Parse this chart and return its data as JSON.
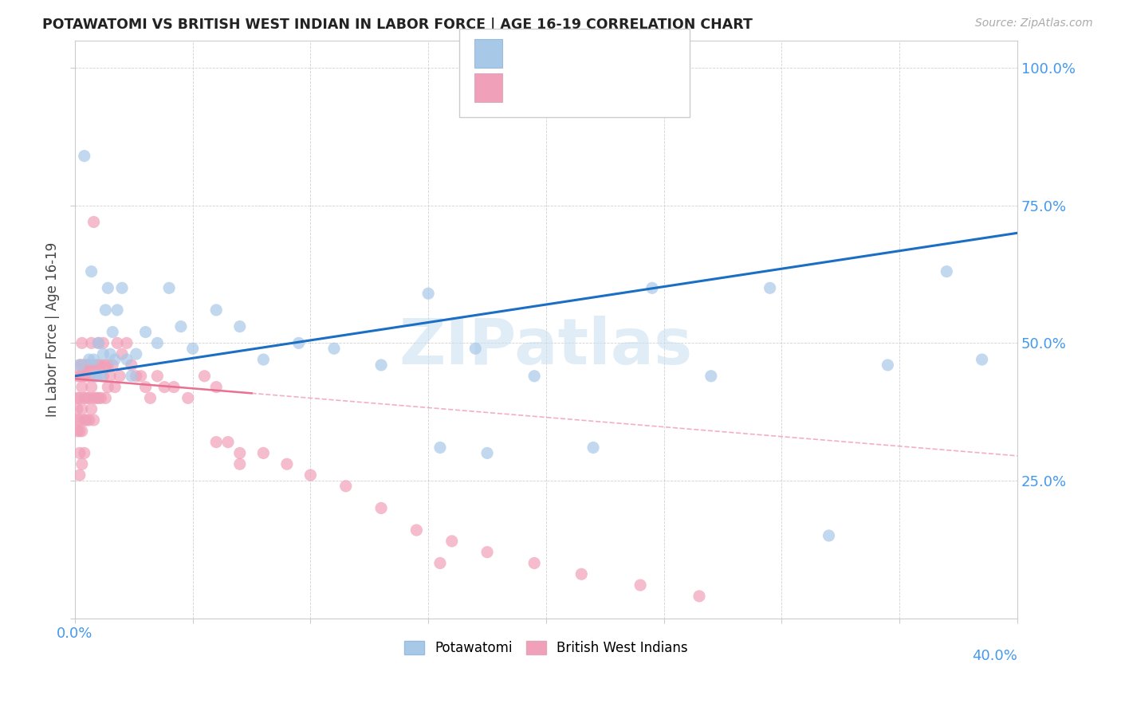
{
  "title": "POTAWATOMI VS BRITISH WEST INDIAN IN LABOR FORCE | AGE 16-19 CORRELATION CHART",
  "source": "Source: ZipAtlas.com",
  "ylabel": "In Labor Force | Age 16-19",
  "watermark": "ZIPatlas",
  "xlim": [
    0.0,
    0.4
  ],
  "ylim": [
    0.0,
    1.05
  ],
  "potawatomi_color": "#a8c8e8",
  "bwi_color": "#f0a0b8",
  "regression_pot_color": "#1a6fc4",
  "regression_bwi_color": "#e87090",
  "pot_x": [
    0.002,
    0.004,
    0.006,
    0.007,
    0.008,
    0.009,
    0.01,
    0.011,
    0.012,
    0.013,
    0.014,
    0.015,
    0.016,
    0.017,
    0.018,
    0.02,
    0.022,
    0.024,
    0.026,
    0.03,
    0.035,
    0.04,
    0.045,
    0.05,
    0.06,
    0.07,
    0.08,
    0.095,
    0.11,
    0.13,
    0.15,
    0.17,
    0.195,
    0.22,
    0.245,
    0.27,
    0.295,
    0.32,
    0.345,
    0.37,
    0.385,
    0.155,
    0.175
  ],
  "pot_y": [
    0.46,
    0.84,
    0.47,
    0.63,
    0.47,
    0.44,
    0.5,
    0.44,
    0.48,
    0.56,
    0.6,
    0.48,
    0.52,
    0.47,
    0.56,
    0.6,
    0.47,
    0.44,
    0.48,
    0.52,
    0.5,
    0.6,
    0.53,
    0.49,
    0.56,
    0.53,
    0.47,
    0.5,
    0.49,
    0.46,
    0.59,
    0.49,
    0.44,
    0.31,
    0.6,
    0.44,
    0.6,
    0.15,
    0.46,
    0.63,
    0.47,
    0.31,
    0.3
  ],
  "bwi_x": [
    0.001,
    0.001,
    0.001,
    0.001,
    0.001,
    0.002,
    0.002,
    0.002,
    0.002,
    0.002,
    0.002,
    0.002,
    0.003,
    0.003,
    0.003,
    0.003,
    0.003,
    0.003,
    0.003,
    0.004,
    0.004,
    0.004,
    0.004,
    0.004,
    0.005,
    0.005,
    0.005,
    0.005,
    0.006,
    0.006,
    0.006,
    0.006,
    0.007,
    0.007,
    0.007,
    0.007,
    0.008,
    0.008,
    0.008,
    0.008,
    0.009,
    0.009,
    0.009,
    0.01,
    0.01,
    0.01,
    0.011,
    0.011,
    0.012,
    0.012,
    0.013,
    0.013,
    0.014,
    0.014,
    0.015,
    0.016,
    0.017,
    0.018,
    0.019,
    0.02,
    0.022,
    0.024,
    0.026,
    0.028,
    0.03,
    0.032,
    0.035,
    0.038,
    0.042,
    0.048,
    0.055,
    0.06,
    0.065,
    0.07,
    0.08,
    0.09,
    0.1,
    0.115,
    0.13,
    0.145,
    0.16,
    0.175,
    0.195,
    0.215,
    0.24,
    0.265,
    0.06,
    0.07,
    0.155
  ],
  "bwi_y": [
    0.44,
    0.4,
    0.38,
    0.36,
    0.34,
    0.46,
    0.44,
    0.4,
    0.36,
    0.34,
    0.3,
    0.26,
    0.5,
    0.46,
    0.44,
    0.42,
    0.38,
    0.34,
    0.28,
    0.46,
    0.44,
    0.4,
    0.36,
    0.3,
    0.46,
    0.44,
    0.4,
    0.36,
    0.46,
    0.44,
    0.4,
    0.36,
    0.5,
    0.46,
    0.42,
    0.38,
    0.72,
    0.44,
    0.4,
    0.36,
    0.46,
    0.44,
    0.4,
    0.5,
    0.46,
    0.4,
    0.46,
    0.4,
    0.5,
    0.44,
    0.46,
    0.4,
    0.46,
    0.42,
    0.44,
    0.46,
    0.42,
    0.5,
    0.44,
    0.48,
    0.5,
    0.46,
    0.44,
    0.44,
    0.42,
    0.4,
    0.44,
    0.42,
    0.42,
    0.4,
    0.44,
    0.42,
    0.32,
    0.3,
    0.3,
    0.28,
    0.26,
    0.24,
    0.2,
    0.16,
    0.14,
    0.12,
    0.1,
    0.08,
    0.06,
    0.04,
    0.32,
    0.28,
    0.1
  ]
}
